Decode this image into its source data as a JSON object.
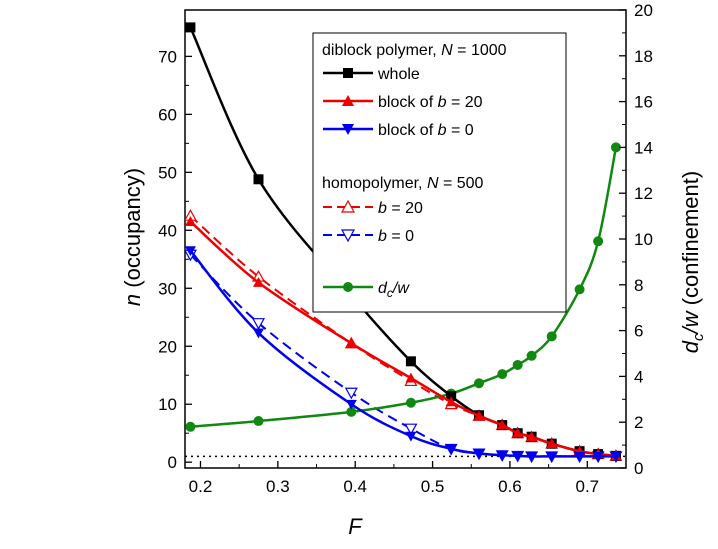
{
  "chart_data": {
    "type": "line",
    "xlabel": "F",
    "ylabel_left": "n (occupancy)",
    "ylabel_right": "d_c/w (confinement)",
    "xlim": [
      0.18,
      0.75
    ],
    "ylim_left": [
      -1,
      78
    ],
    "ylim_right": [
      0,
      20
    ],
    "xticks": [
      0.2,
      0.3,
      0.4,
      0.5,
      0.6,
      0.7
    ],
    "xtick_labels": [
      "0.2",
      "0.3",
      "0.4",
      "0.5",
      "0.6",
      "0.7"
    ],
    "yticks_left": [
      0,
      10,
      20,
      30,
      40,
      50,
      60,
      70
    ],
    "yticks_right": [
      0,
      2,
      4,
      6,
      8,
      10,
      12,
      14,
      16,
      18,
      20
    ],
    "grid": false,
    "legend_position": "top-right",
    "reference_line": {
      "y": 1,
      "style": "dotted",
      "axis": "left"
    },
    "legend_headers": {
      "diblock": "diblock polymer, N = 1000",
      "homo": "homopolymer, N = 500"
    },
    "series": [
      {
        "name": "whole",
        "axis": "left",
        "color": "#000000",
        "marker": "square",
        "line": "solid",
        "x": [
          0.187,
          0.275,
          0.395,
          0.472,
          0.524,
          0.56,
          0.59,
          0.61,
          0.628,
          0.654,
          0.69,
          0.714,
          0.737
        ],
        "y": [
          75,
          48.8,
          28.8,
          17.4,
          11.4,
          8.1,
          6.4,
          5.0,
          4.4,
          3.2,
          1.9,
          1.4,
          1.1
        ]
      },
      {
        "name": "block of b = 20",
        "axis": "left",
        "color": "#ee0000",
        "marker": "triangle-up",
        "line": "solid",
        "x": [
          0.187,
          0.275,
          0.395,
          0.472,
          0.524,
          0.56,
          0.59,
          0.61,
          0.628,
          0.654,
          0.69,
          0.714,
          0.737
        ],
        "y": [
          41.5,
          31.0,
          20.5,
          14.5,
          10.4,
          8.0,
          6.4,
          5.0,
          4.4,
          3.2,
          1.9,
          1.4,
          1.1
        ]
      },
      {
        "name": "block of b = 0",
        "axis": "left",
        "color": "#0000ee",
        "marker": "triangle-down",
        "line": "solid",
        "x": [
          0.187,
          0.275,
          0.395,
          0.472,
          0.524,
          0.56,
          0.59,
          0.61,
          0.628,
          0.654,
          0.69,
          0.714,
          0.737
        ],
        "y": [
          36.5,
          22.3,
          10.0,
          4.5,
          2.3,
          1.5,
          1.2,
          1.1,
          1.0,
          1.0,
          1.0,
          1.0,
          1.0
        ]
      },
      {
        "name": "b = 20",
        "axis": "left",
        "color": "#ee0000",
        "marker": "triangle-up-open",
        "line": "dashed",
        "x": [
          0.187,
          0.275,
          0.395,
          0.472,
          0.524,
          0.56,
          0.59,
          0.61,
          0.628,
          0.654,
          0.69,
          0.714,
          0.737
        ],
        "y": [
          42.5,
          32.0,
          20.5,
          14.0,
          10.0,
          8.0,
          6.4,
          5.0,
          4.3,
          3.2,
          1.9,
          1.4,
          1.1
        ]
      },
      {
        "name": "b = 0",
        "axis": "left",
        "color": "#0000ee",
        "marker": "triangle-down-open",
        "line": "dashed",
        "x": [
          0.187,
          0.275,
          0.395,
          0.472,
          0.524,
          0.56,
          0.59,
          0.61,
          0.628,
          0.654,
          0.69,
          0.714,
          0.737
        ],
        "y": [
          35.8,
          24.0,
          12.0,
          5.8,
          2.3,
          1.5,
          1.2,
          1.1,
          1.0,
          1.0,
          1.0,
          1.0,
          1.0
        ]
      },
      {
        "name": "d_c/w",
        "axis": "right",
        "color": "#118811",
        "marker": "circle",
        "line": "solid",
        "x": [
          0.187,
          0.275,
          0.395,
          0.472,
          0.524,
          0.56,
          0.59,
          0.61,
          0.628,
          0.654,
          0.69,
          0.714,
          0.737
        ],
        "y": [
          1.8,
          2.05,
          2.45,
          2.85,
          3.25,
          3.7,
          4.1,
          4.5,
          4.9,
          5.75,
          7.8,
          9.9,
          14.0
        ]
      }
    ]
  }
}
